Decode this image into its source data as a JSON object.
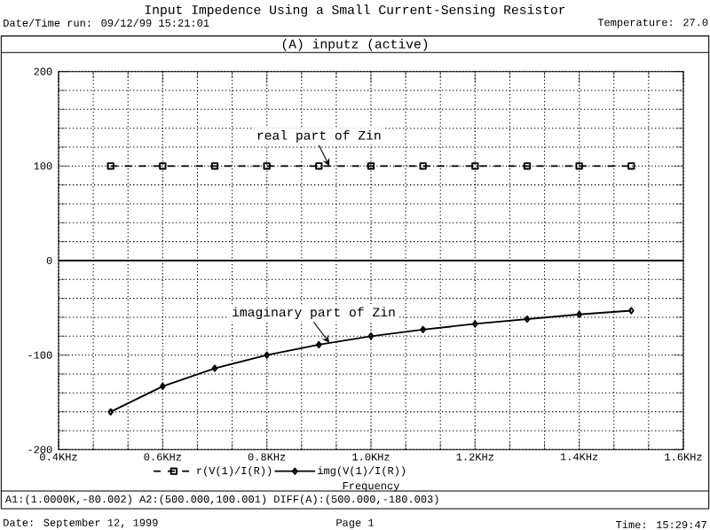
{
  "chart_data": {
    "type": "line",
    "title": "Input Impedence Using a Small Current-Sensing Resistor",
    "subtitle": "(A) inputz (active)",
    "xlabel": "Frequency",
    "x": [
      0.5,
      0.6,
      0.7,
      0.8,
      0.9,
      1.0,
      1.1,
      1.2,
      1.3,
      1.4,
      1.5
    ],
    "series": [
      {
        "name": "r(V(1)/I(R))",
        "color": "#000000",
        "line_style": "dashed",
        "marker": "square",
        "values": [
          100,
          100,
          100,
          100,
          100,
          100,
          100,
          100,
          100,
          100,
          100
        ]
      },
      {
        "name": "img(V(1)/I(R))",
        "color": "#000000",
        "line_style": "solid",
        "marker": "diamond",
        "values": [
          -160,
          -133,
          -114,
          -100,
          -89,
          -80,
          -73,
          -67,
          -62,
          -57,
          -53
        ]
      }
    ],
    "xlim": [
      0.4,
      1.6
    ],
    "xticks": [
      {
        "value": 0.4,
        "label": "0.4KHz"
      },
      {
        "value": 0.6,
        "label": "0.6KHz"
      },
      {
        "value": 0.8,
        "label": "0.8KHz"
      },
      {
        "value": 1.0,
        "label": "1.0KHz"
      },
      {
        "value": 1.2,
        "label": "1.2KHz"
      },
      {
        "value": 1.4,
        "label": "1.4KHz"
      },
      {
        "value": 1.6,
        "label": "1.6KHz"
      }
    ],
    "ylim": [
      -200,
      200
    ],
    "yticks": [
      -200,
      -100,
      0,
      100,
      200
    ],
    "grid": true,
    "legend": "bottom left",
    "annotations": [
      {
        "text": "real part of Zin",
        "x": 0.92,
        "y": 100
      },
      {
        "text": "imaginary part of Zin",
        "x": 0.92,
        "y": -87
      },
      "Date/Time run: 09/12/99 15:21:01",
      "Temperature: 27.0",
      "A1:(1.0000K,-80.002)  A2:(500.000,100.001)  DIFF(A):(500.000,-180.003)",
      "Date: September 12, 1999",
      "Page 1",
      "Time: 15:29:47"
    ]
  }
}
